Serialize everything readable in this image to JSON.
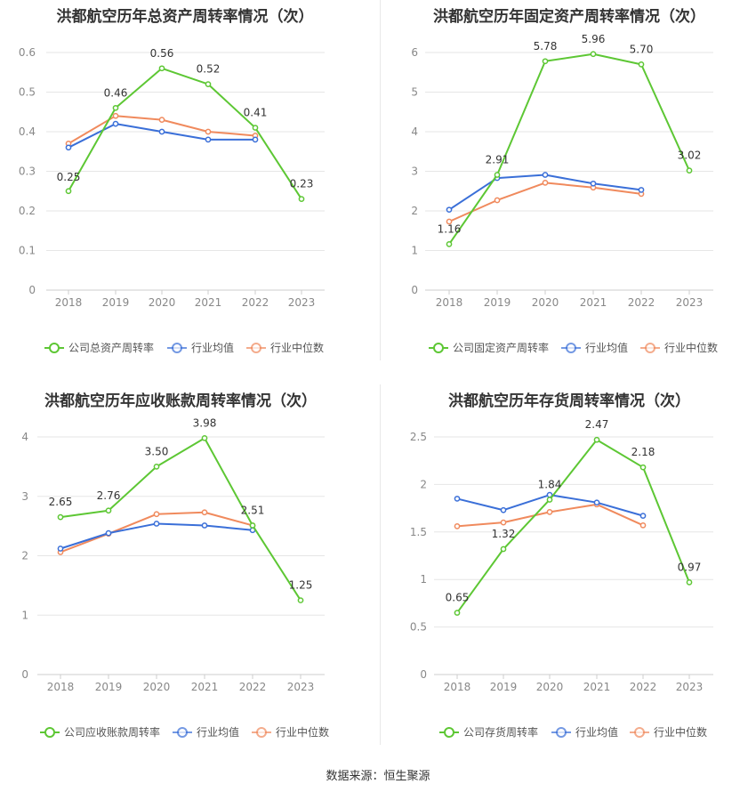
{
  "colors": {
    "company": "#5dc734",
    "avg": "#3a6fd8",
    "median": "#f08a5d",
    "grid": "#e6e6e6",
    "axis": "#cccccc",
    "tick": "#888888",
    "title": "#333333"
  },
  "source": "数据来源：恒生聚源",
  "chart_data": [
    {
      "type": "line",
      "title": "洪都航空历年总资产周转率情况（次）",
      "categories": [
        "2018",
        "2019",
        "2020",
        "2021",
        "2022",
        "2023"
      ],
      "yticks": [
        "0",
        "0.1",
        "0.2",
        "0.3",
        "0.4",
        "0.5",
        "0.6"
      ],
      "ylim": [
        0,
        0.6
      ],
      "grid": true,
      "legend_position": "bottom",
      "series": [
        {
          "name": "公司总资产周转率",
          "values": [
            0.25,
            0.46,
            0.56,
            0.52,
            0.41,
            0.23
          ],
          "labels": [
            "0.25",
            "0.46",
            "0.56",
            "0.52",
            "0.41",
            "0.23"
          ]
        },
        {
          "name": "行业均值",
          "values": [
            0.36,
            0.42,
            0.4,
            0.38,
            0.38,
            null
          ]
        },
        {
          "name": "行业中位数",
          "values": [
            0.37,
            0.44,
            0.43,
            0.4,
            0.39,
            null
          ]
        }
      ]
    },
    {
      "type": "line",
      "title": "洪都航空历年固定资产周转率情况（次）",
      "categories": [
        "2018",
        "2019",
        "2020",
        "2021",
        "2022",
        "2023"
      ],
      "yticks": [
        "0",
        "1",
        "2",
        "3",
        "4",
        "5",
        "6"
      ],
      "ylim": [
        0,
        6
      ],
      "grid": true,
      "legend_position": "bottom",
      "series": [
        {
          "name": "公司固定资产周转率",
          "values": [
            1.16,
            2.91,
            5.78,
            5.96,
            5.7,
            3.02
          ],
          "labels": [
            "1.16",
            "2.91",
            "5.78",
            "5.96",
            "5.70",
            "3.02"
          ]
        },
        {
          "name": "行业均值",
          "values": [
            2.03,
            2.83,
            2.91,
            2.69,
            2.53,
            null
          ]
        },
        {
          "name": "行业中位数",
          "values": [
            1.73,
            2.27,
            2.71,
            2.59,
            2.43,
            null
          ]
        }
      ]
    },
    {
      "type": "line",
      "title": "洪都航空历年应收账款周转率情况（次）",
      "categories": [
        "2018",
        "2019",
        "2020",
        "2021",
        "2022",
        "2023"
      ],
      "yticks": [
        "0",
        "1",
        "2",
        "3",
        "4"
      ],
      "ylim": [
        0,
        4
      ],
      "grid": true,
      "legend_position": "bottom",
      "series": [
        {
          "name": "公司应收账款周转率",
          "values": [
            2.65,
            2.76,
            3.5,
            3.98,
            2.51,
            1.25
          ],
          "labels": [
            "2.65",
            "2.76",
            "3.50",
            "3.98",
            "2.51",
            "1.25"
          ]
        },
        {
          "name": "行业均值",
          "values": [
            2.12,
            2.38,
            2.54,
            2.51,
            2.43,
            null
          ]
        },
        {
          "name": "行业中位数",
          "values": [
            2.06,
            2.37,
            2.7,
            2.73,
            2.51,
            null
          ]
        }
      ]
    },
    {
      "type": "line",
      "title": "洪都航空历年存货周转率情况（次）",
      "categories": [
        "2018",
        "2019",
        "2020",
        "2021",
        "2022",
        "2023"
      ],
      "yticks": [
        "0",
        "0.5",
        "1",
        "1.5",
        "2",
        "2.5"
      ],
      "ylim": [
        0,
        2.5
      ],
      "grid": true,
      "legend_position": "bottom",
      "series": [
        {
          "name": "公司存货周转率",
          "values": [
            0.65,
            1.32,
            1.84,
            2.47,
            2.18,
            0.97
          ],
          "labels": [
            "0.65",
            "1.32",
            "1.84",
            "2.47",
            "2.18",
            "0.97"
          ]
        },
        {
          "name": "行业均值",
          "values": [
            1.85,
            1.73,
            1.89,
            1.81,
            1.67,
            null
          ]
        },
        {
          "name": "行业中位数",
          "values": [
            1.56,
            1.6,
            1.71,
            1.79,
            1.57,
            null
          ]
        }
      ]
    }
  ]
}
